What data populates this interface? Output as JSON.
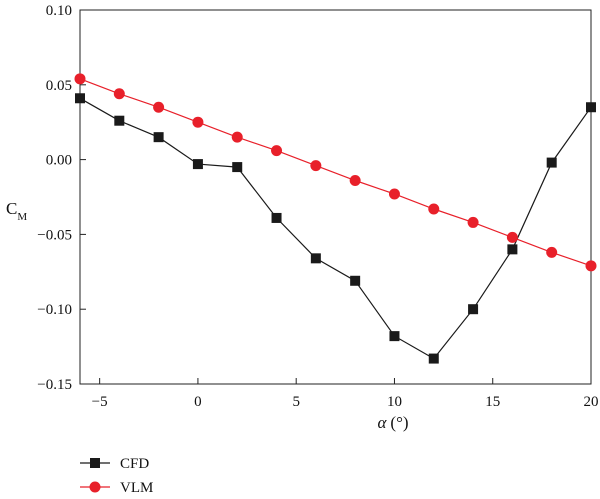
{
  "chart_data": {
    "type": "line",
    "xlabel_symbol": "α",
    "xlabel_unit": "(°)",
    "ylabel_main": "C",
    "ylabel_sub": "M",
    "xlim": [
      -6,
      20
    ],
    "ylim": [
      -0.15,
      0.1
    ],
    "x_ticks": [
      -5,
      0,
      5,
      10,
      15,
      20
    ],
    "x_tick_labels": [
      "−5",
      "0",
      "5",
      "10",
      "15",
      "20"
    ],
    "y_ticks": [
      0.1,
      0.05,
      0.0,
      -0.05,
      -0.1,
      -0.15
    ],
    "y_tick_labels": [
      "0.10",
      "0.05",
      "0.00",
      "−0.05",
      "−0.10",
      "−0.15"
    ],
    "legend_position": "bottom-left outside",
    "series": [
      {
        "name": "CFD",
        "color": "#1a1a1a",
        "marker": "square",
        "x": [
          -6,
          -4,
          -2,
          0,
          2,
          4,
          6,
          8,
          10,
          12,
          14,
          16,
          18,
          20
        ],
        "y": [
          0.041,
          0.026,
          0.015,
          -0.003,
          -0.005,
          -0.039,
          -0.066,
          -0.081,
          -0.118,
          -0.133,
          -0.1,
          -0.06,
          -0.002,
          0.035
        ]
      },
      {
        "name": "VLM",
        "color": "#e8202a",
        "marker": "circle",
        "x": [
          -6,
          -4,
          -2,
          0,
          2,
          4,
          6,
          8,
          10,
          12,
          14,
          16,
          18,
          20
        ],
        "y": [
          0.054,
          0.044,
          0.035,
          0.025,
          0.015,
          0.006,
          -0.004,
          -0.014,
          -0.023,
          -0.033,
          -0.042,
          -0.052,
          -0.062,
          -0.071
        ]
      }
    ]
  }
}
